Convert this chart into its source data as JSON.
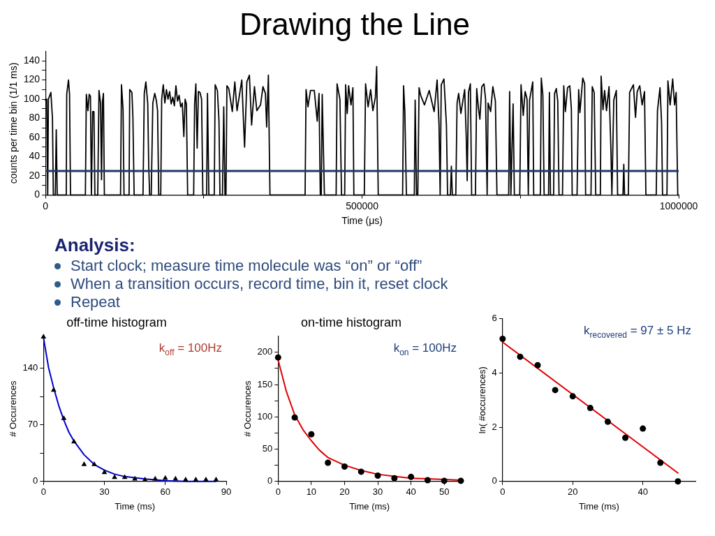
{
  "chart_data": [
    {
      "type": "line",
      "title": "Drawing the Line",
      "xlabel": "Time (μs)",
      "ylabel": "counts per time bin (1/1 ms)",
      "color": "#000000",
      "x": [
        0,
        2000,
        3500,
        4600,
        8500,
        11000,
        12400,
        15500,
        17000,
        18500,
        32800,
        33500,
        36300,
        38000,
        39500,
        63000,
        64500,
        67000,
        69000,
        71000,
        72500,
        74500,
        76500,
        78000,
        82500,
        84500,
        87000,
        88500,
        90000,
        91500,
        93000,
        118500,
        120000,
        122500,
        124000,
        132000,
        133000,
        136500,
        138000,
        140000,
        154000,
        156000,
        158500,
        161500,
        163000,
        164500,
        167000,
        169500,
        172500,
        175000,
        177000,
        178800,
        182000,
        183500,
        186000,
        188500,
        191000,
        193500,
        196000,
        198500,
        201000,
        203500,
        206000,
        208500,
        211000,
        213500,
        216000,
        218500,
        220500,
        222500,
        224500,
        234000,
        235500,
        237500,
        239500,
        241500,
        244000,
        246500,
        248500,
        254500,
        255800,
        258000,
        266500,
        268000,
        271500,
        274000,
        275500,
        279500,
        281500,
        283500,
        285000,
        286500,
        289500,
        295000,
        299000,
        302500,
        310000,
        314400,
        318000,
        322000,
        325500,
        330000,
        333800,
        339600,
        343500,
        347300,
        349300,
        352000,
        354500,
        410000,
        411500,
        414500,
        418500,
        424500,
        429200,
        432000,
        434000,
        435500,
        437000,
        440500,
        459000,
        460500,
        465000,
        467500,
        472500,
        474000,
        476500,
        478700,
        482500,
        485500,
        487000,
        503500,
        505500,
        509500,
        513500,
        517000,
        521000,
        523000,
        525500,
        564000,
        565500,
        567500,
        570000,
        582500,
        583800,
        586000,
        588000,
        590000,
        592500,
        598500,
        606000,
        613800,
        618500,
        621500,
        623300,
        625000,
        629300,
        633200,
        635000,
        639500,
        641000,
        642500,
        648000,
        650000,
        652500,
        656000,
        662000,
        664500,
        666000,
        668000,
        671000,
        673000,
        679000,
        681000,
        683500,
        686000,
        689000,
        692500,
        695000,
        697500,
        699000,
        703000,
        706500,
        710500,
        713000,
        731500,
        733000,
        735000,
        738500,
        740500,
        749000,
        751000,
        754500,
        757500,
        760500,
        762500,
        764500,
        769500,
        771000,
        781500,
        783000,
        785500,
        787500,
        794500,
        795800,
        797500,
        802500,
        804000,
        806700,
        809000,
        811000,
        816500,
        818500,
        821000,
        824500,
        828000,
        830500,
        831800,
        839500,
        842000,
        844000,
        848500,
        851500,
        853000,
        861500,
        863500,
        866500,
        869000,
        876300,
        877500,
        880500,
        883000,
        886000,
        890000,
        893000,
        894500,
        897500,
        901500,
        903500,
        912000,
        913300,
        914500,
        920500,
        922500,
        928500,
        931800,
        934500,
        938500,
        942300,
        946000,
        948200,
        964500,
        966500,
        970500,
        973000,
        974500,
        981500,
        983000,
        986500,
        990500,
        993500,
        996000,
        998500,
        1000000
      ],
      "values": [
        99,
        100,
        0,
        100,
        107,
        80,
        0,
        0,
        68,
        0,
        0,
        105,
        120,
        105,
        0,
        0,
        105,
        88,
        105,
        103,
        0,
        87,
        87,
        0,
        0,
        109,
        95,
        16,
        98,
        106,
        0,
        0,
        115,
        89,
        0,
        0,
        110,
        107,
        82,
        0,
        0,
        106,
        118,
        95,
        31,
        0,
        0,
        96,
        106,
        99,
        88,
        0,
        0,
        100,
        115,
        96,
        110,
        100,
        108,
        95,
        102,
        93,
        114,
        98,
        104,
        92,
        96,
        61,
        100,
        95,
        0,
        0,
        95,
        116,
        49,
        108,
        107,
        100,
        0,
        0,
        106,
        0,
        0,
        115,
        109,
        77,
        0,
        0,
        92,
        0,
        0,
        114,
        111,
        87,
        118,
        88,
        120,
        50,
        118,
        125,
        73,
        113,
        88,
        94,
        113,
        106,
        71,
        125,
        0,
        0,
        110,
        92,
        109,
        109,
        77,
        106,
        0,
        0,
        105,
        0,
        0,
        116,
        100,
        0,
        0,
        115,
        85,
        114,
        94,
        112,
        0,
        0,
        116,
        92,
        110,
        88,
        102,
        134,
        0,
        0,
        114,
        87,
        0,
        0,
        99,
        0,
        0,
        112,
        104,
        94,
        109,
        87,
        120,
        73,
        0,
        115,
        121,
        73,
        0,
        0,
        30,
        0,
        0,
        96,
        106,
        85,
        110,
        60,
        15,
        107,
        116,
        0,
        0,
        111,
        92,
        79,
        113,
        116,
        100,
        0,
        96,
        87,
        113,
        98,
        0,
        0,
        108,
        0,
        95,
        0,
        0,
        115,
        83,
        108,
        100,
        0,
        99,
        118,
        0,
        0,
        122,
        104,
        0,
        0,
        107,
        0,
        0,
        106,
        111,
        98,
        0,
        0,
        114,
        87,
        112,
        114,
        90,
        0,
        0,
        110,
        86,
        122,
        116,
        0,
        0,
        113,
        107,
        0,
        0,
        124,
        89,
        109,
        88,
        113,
        46,
        0,
        99,
        109,
        0,
        0,
        32,
        0,
        0,
        107,
        115,
        81,
        108,
        114,
        94,
        108,
        0,
        0,
        88,
        112,
        75,
        0,
        0,
        119,
        94,
        121,
        94,
        107,
        0,
        0
      ],
      "xlim": [
        0,
        1000000
      ],
      "xticks": [
        0,
        {
          "value": 250000,
          "label": null
        },
        500000,
        {
          "value": 750000,
          "label": null
        },
        1000000
      ],
      "ylim": [
        0,
        150
      ],
      "yticks": [
        0,
        {
          "value": 10,
          "label": null
        },
        20,
        {
          "value": 30,
          "label": null
        },
        40,
        {
          "value": 50,
          "label": null
        },
        60,
        {
          "value": 70,
          "label": null
        },
        80,
        {
          "value": 90,
          "label": null
        },
        100,
        {
          "value": 110,
          "label": null
        },
        120,
        {
          "value": 130,
          "label": null
        },
        140
      ],
      "ref_lines": [
        {
          "axis": "y",
          "value": 25,
          "color": "#1f3864"
        }
      ]
    },
    {
      "type": "other",
      "title": "Analysis:",
      "annotations": [
        "Start clock; measure time molecule was “on” or “off”",
        "When a transition occurs, record time, bin it, reset clock",
        "Repeat"
      ]
    },
    {
      "type": "scatter",
      "title": "off-time histogram",
      "xlabel": "Time (ms)",
      "ylabel": "# Occurences",
      "x": [
        0,
        5,
        10,
        15,
        20,
        25,
        30,
        35,
        40,
        45,
        50,
        55,
        60,
        65,
        70,
        75,
        80,
        85
      ],
      "series": [
        {
          "color": "#000000",
          "marker": "triangle",
          "values": [
            179,
            113,
            78,
            49,
            21,
            21,
            11,
            5,
            5,
            3,
            2,
            3,
            4,
            3,
            2,
            2,
            2,
            2
          ]
        },
        {
          "type": "line",
          "color": "#0000cc",
          "x": [
            0,
            2.5,
            5,
            7.5,
            10,
            12.5,
            15,
            20,
            25,
            30,
            35,
            40,
            50,
            60,
            70,
            85
          ],
          "values": [
            178,
            141,
            116,
            94,
            76,
            61,
            50,
            33,
            21,
            14,
            9,
            6,
            3,
            1,
            0,
            0
          ]
        }
      ],
      "xlim": [
        0,
        90
      ],
      "xticks": [
        0,
        30,
        60,
        90
      ],
      "ylim": [
        0,
        180
      ],
      "yticks": [
        0,
        {
          "value": 35,
          "label": null
        },
        70,
        {
          "value": 105,
          "label": null
        },
        140
      ],
      "annotations": [
        "k$_{off}$ = 100Hz"
      ]
    },
    {
      "type": "scatter",
      "title": "on-time histogram",
      "xlabel": "Time (ms)",
      "ylabel": "# Occurences",
      "x": [
        0,
        5,
        10,
        15,
        20,
        25,
        30,
        35,
        40,
        45,
        50,
        55
      ],
      "series": [
        {
          "color": "#000000",
          "marker": "circle",
          "values": [
            192,
            99,
            73,
            29,
            23,
            15,
            9,
            5,
            7,
            2,
            1,
            1
          ]
        },
        {
          "type": "line",
          "color": "#e00000",
          "x": [
            0,
            2.5,
            5,
            7.5,
            10,
            12.5,
            15,
            20,
            25,
            30,
            35,
            40,
            45,
            50,
            55
          ],
          "values": [
            188,
            139,
            103,
            80,
            63,
            48,
            37,
            25,
            17,
            11,
            8,
            5,
            4,
            3,
            2
          ]
        }
      ],
      "xlim": [
        0,
        55
      ],
      "xticks": [
        0,
        10,
        20,
        30,
        40,
        50
      ],
      "ylim": [
        0,
        225
      ],
      "yticks": [
        0,
        {
          "value": 25,
          "label": null
        },
        50,
        {
          "value": 75,
          "label": null
        },
        100,
        {
          "value": 125,
          "label": null
        },
        150,
        {
          "value": 175,
          "label": null
        },
        200
      ],
      "annotations": [
        "k$_{on}$ = 100Hz"
      ]
    },
    {
      "type": "scatter",
      "xlabel": "Time (ms)",
      "ylabel": "ln( #occurences)",
      "x": [
        0,
        5,
        10,
        15,
        20,
        25,
        30,
        35,
        40,
        45,
        50
      ],
      "series": [
        {
          "color": "#000000",
          "marker": "circle",
          "values": [
            5.26,
            4.6,
            4.29,
            3.37,
            3.14,
            2.71,
            2.2,
            1.61,
            1.95,
            0.69,
            0
          ]
        },
        {
          "type": "line",
          "color": "#e00000",
          "x": [
            0,
            50
          ],
          "values": [
            5.14,
            0.31
          ]
        }
      ],
      "xlim": [
        0,
        55
      ],
      "xticks": [
        0,
        20,
        40
      ],
      "ylim": [
        0,
        6
      ],
      "yticks": [
        0,
        2,
        4,
        6
      ],
      "annotations": [
        "k$_{recovered}$ = 97 ± 5 Hz"
      ]
    }
  ]
}
